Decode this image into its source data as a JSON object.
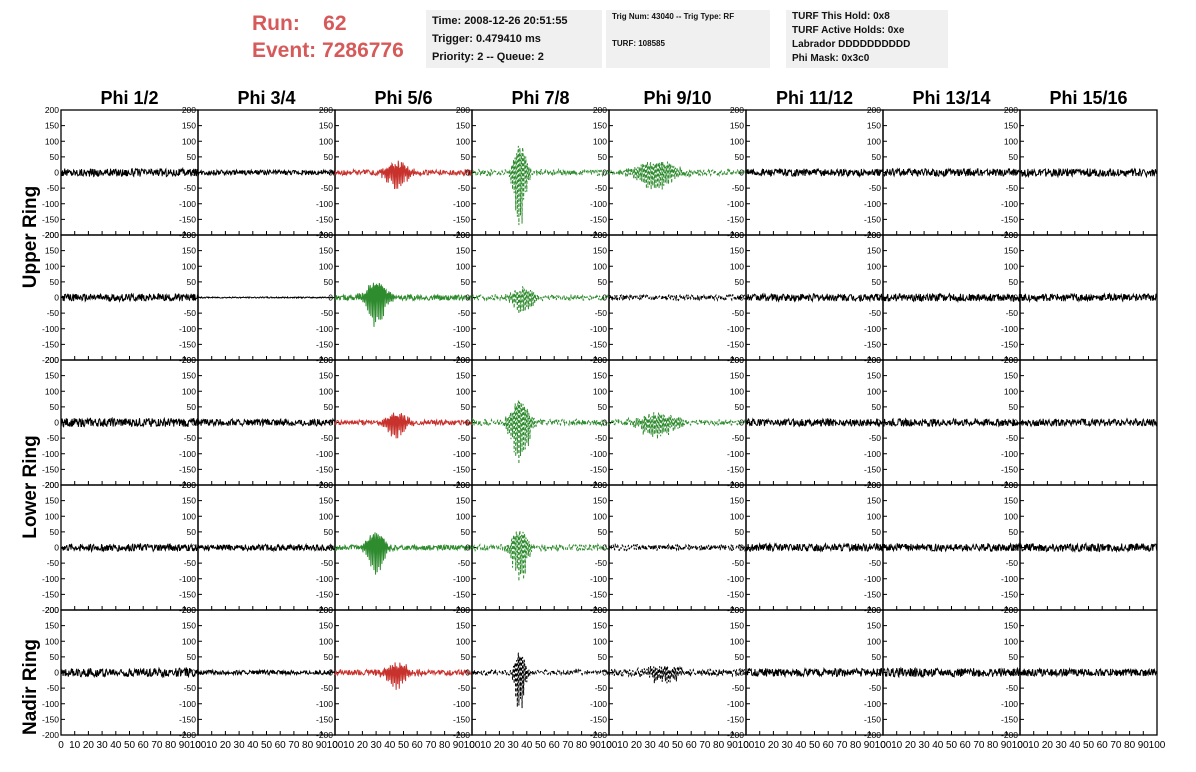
{
  "header": {
    "run_label": "Run:",
    "run_value": "62",
    "event_label": "Event:",
    "event_value": "7286776",
    "time": "Time: 2008-12-26 20:51:55",
    "trigger": "Trigger: 0.479410 ms",
    "priority": "Priority: 2 -- Queue: 2",
    "trig_num": "Trig Num: 43040 -- Trig Type: RF",
    "turf": "TURF: 108585",
    "turf_this_hold": "TURF This Hold: 0x8",
    "turf_active_holds": "TURF Active Holds: 0xe",
    "labrador": "Labrador DDDDDDDDDD",
    "phi_mask": "Phi Mask: 0x3c0"
  },
  "colors": {
    "black": "#000000",
    "red": "#c8322d",
    "green": "#2e8b2e",
    "run_text": "#d65a5a",
    "info_bg": "#f0f0f0"
  },
  "chart_data": {
    "type": "line",
    "columns": [
      "Phi 1/2",
      "Phi 3/4",
      "Phi 5/6",
      "Phi 7/8",
      "Phi 9/10",
      "Phi 11/12",
      "Phi 13/14",
      "Phi 15/16"
    ],
    "row_groups": [
      "Upper Ring",
      "Lower Ring",
      "Nadir Ring"
    ],
    "rows": 5,
    "ylim": [
      -200,
      200
    ],
    "xlim": [
      0,
      100
    ],
    "y_ticks": [
      -200,
      -150,
      -100,
      -50,
      0,
      50,
      100,
      150,
      200
    ],
    "x_ticks": [
      0,
      10,
      20,
      30,
      40,
      50,
      60,
      70,
      80,
      90,
      100
    ],
    "panels": [
      [
        {
          "color": "black",
          "dashed": false,
          "noise": 13,
          "peak": 0,
          "center": 0,
          "width": 0
        },
        {
          "color": "black",
          "dashed": false,
          "noise": 8,
          "peak": 0,
          "center": 0,
          "width": 0
        },
        {
          "color": "red",
          "dashed": false,
          "noise": 9,
          "peak": 55,
          "center": 45,
          "width": 9
        },
        {
          "color": "green",
          "dashed": true,
          "noise": 10,
          "peak": 195,
          "center": 35,
          "width": 5
        },
        {
          "color": "green",
          "dashed": true,
          "noise": 9,
          "peak": 60,
          "center": 35,
          "width": 16
        },
        {
          "color": "black",
          "dashed": false,
          "noise": 12,
          "peak": 0,
          "center": 0,
          "width": 0
        },
        {
          "color": "black",
          "dashed": false,
          "noise": 12,
          "peak": 0,
          "center": 0,
          "width": 0
        },
        {
          "color": "black",
          "dashed": false,
          "noise": 13,
          "peak": 0,
          "center": 0,
          "width": 0
        }
      ],
      [
        {
          "color": "black",
          "dashed": false,
          "noise": 12,
          "peak": 0,
          "center": 0,
          "width": 0
        },
        {
          "color": "black",
          "dashed": false,
          "noise": 2,
          "peak": 0,
          "center": 0,
          "width": 0
        },
        {
          "color": "green",
          "dashed": false,
          "noise": 9,
          "peak": 100,
          "center": 30,
          "width": 8
        },
        {
          "color": "green",
          "dashed": true,
          "noise": 9,
          "peak": 55,
          "center": 37,
          "width": 9
        },
        {
          "color": "black",
          "dashed": true,
          "noise": 9,
          "peak": 0,
          "center": 0,
          "width": 0
        },
        {
          "color": "black",
          "dashed": false,
          "noise": 12,
          "peak": 0,
          "center": 0,
          "width": 0
        },
        {
          "color": "black",
          "dashed": false,
          "noise": 12,
          "peak": 0,
          "center": 0,
          "width": 0
        },
        {
          "color": "black",
          "dashed": false,
          "noise": 12,
          "peak": 0,
          "center": 0,
          "width": 0
        }
      ],
      [
        {
          "color": "black",
          "dashed": false,
          "noise": 14,
          "peak": 0,
          "center": 0,
          "width": 0
        },
        {
          "color": "black",
          "dashed": false,
          "noise": 11,
          "peak": 0,
          "center": 0,
          "width": 0
        },
        {
          "color": "red",
          "dashed": false,
          "noise": 8,
          "peak": 50,
          "center": 45,
          "width": 8
        },
        {
          "color": "green",
          "dashed": true,
          "noise": 10,
          "peak": 150,
          "center": 35,
          "width": 7
        },
        {
          "color": "green",
          "dashed": true,
          "noise": 9,
          "peak": 50,
          "center": 35,
          "width": 15
        },
        {
          "color": "black",
          "dashed": false,
          "noise": 12,
          "peak": 0,
          "center": 0,
          "width": 0
        },
        {
          "color": "black",
          "dashed": false,
          "noise": 12,
          "peak": 0,
          "center": 0,
          "width": 0
        },
        {
          "color": "black",
          "dashed": false,
          "noise": 12,
          "peak": 0,
          "center": 0,
          "width": 0
        }
      ],
      [
        {
          "color": "black",
          "dashed": false,
          "noise": 12,
          "peak": 0,
          "center": 0,
          "width": 0
        },
        {
          "color": "black",
          "dashed": false,
          "noise": 10,
          "peak": 0,
          "center": 0,
          "width": 0
        },
        {
          "color": "green",
          "dashed": false,
          "noise": 8,
          "peak": 95,
          "center": 30,
          "width": 7
        },
        {
          "color": "green",
          "dashed": true,
          "noise": 10,
          "peak": 130,
          "center": 35,
          "width": 6
        },
        {
          "color": "black",
          "dashed": true,
          "noise": 10,
          "peak": 0,
          "center": 0,
          "width": 0
        },
        {
          "color": "black",
          "dashed": false,
          "noise": 12,
          "peak": 0,
          "center": 0,
          "width": 0
        },
        {
          "color": "black",
          "dashed": false,
          "noise": 12,
          "peak": 0,
          "center": 0,
          "width": 0
        },
        {
          "color": "black",
          "dashed": false,
          "noise": 13,
          "peak": 0,
          "center": 0,
          "width": 0
        }
      ],
      [
        {
          "color": "black",
          "dashed": false,
          "noise": 14,
          "peak": 0,
          "center": 0,
          "width": 0
        },
        {
          "color": "black",
          "dashed": false,
          "noise": 7,
          "peak": 0,
          "center": 0,
          "width": 0
        },
        {
          "color": "red",
          "dashed": false,
          "noise": 9,
          "peak": 50,
          "center": 45,
          "width": 9
        },
        {
          "color": "black",
          "dashed": true,
          "noise": 8,
          "peak": 140,
          "center": 35,
          "width": 4
        },
        {
          "color": "black",
          "dashed": true,
          "noise": 12,
          "peak": 30,
          "center": 40,
          "width": 15
        },
        {
          "color": "black",
          "dashed": false,
          "noise": 13,
          "peak": 0,
          "center": 0,
          "width": 0
        },
        {
          "color": "black",
          "dashed": false,
          "noise": 14,
          "peak": 0,
          "center": 0,
          "width": 0
        },
        {
          "color": "black",
          "dashed": false,
          "noise": 12,
          "peak": 0,
          "center": 0,
          "width": 0
        }
      ]
    ]
  }
}
